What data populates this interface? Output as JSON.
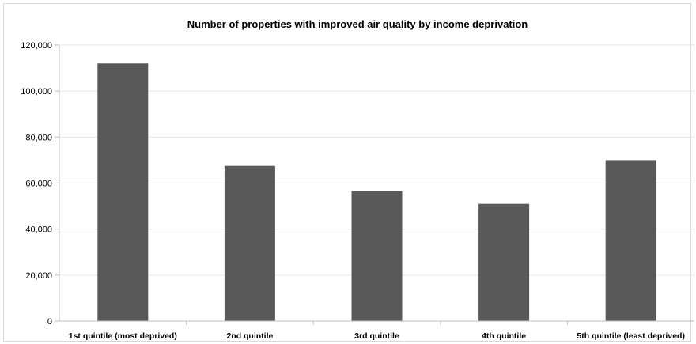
{
  "chart_data": {
    "type": "bar",
    "title": "Number of properties with improved air quality by income deprivation",
    "xlabel": "",
    "ylabel": "",
    "categories": [
      "1st quintile (most deprived)",
      "2nd quintile",
      "3rd quintile",
      "4th quintile",
      "5th quintile (least deprived)"
    ],
    "values": [
      112000,
      67500,
      56500,
      51000,
      70000
    ],
    "ylim": [
      0,
      120000
    ],
    "yticks": [
      0,
      20000,
      40000,
      60000,
      80000,
      100000,
      120000
    ],
    "ytick_labels": [
      "0",
      "20,000",
      "40,000",
      "60,000",
      "80,000",
      "100,000",
      "120,000"
    ],
    "grid": true,
    "legend": "none",
    "bar_color": "#595959",
    "grid_color": "#e6e6e6",
    "axis_color": "#bfbfbf"
  }
}
